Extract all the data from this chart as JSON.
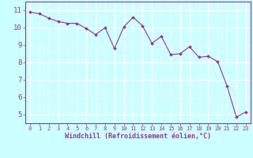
{
  "x": [
    0,
    1,
    2,
    3,
    4,
    5,
    6,
    7,
    8,
    9,
    10,
    11,
    12,
    13,
    14,
    15,
    16,
    17,
    18,
    19,
    20,
    21,
    22,
    23
  ],
  "y": [
    10.9,
    10.8,
    10.55,
    10.35,
    10.25,
    10.25,
    9.95,
    9.6,
    10.0,
    8.8,
    10.05,
    10.6,
    10.1,
    9.1,
    9.5,
    8.45,
    8.5,
    8.9,
    8.3,
    8.35,
    8.05,
    6.65,
    4.85,
    5.15
  ],
  "line_color": "#993399",
  "marker_color": "#993399",
  "bg_color": "#ccffff",
  "grid_color": "#aabbbb",
  "xlabel": "Windchill (Refroidissement éolien,°C)",
  "xlabel_color": "#993399",
  "tick_color": "#993399",
  "ylim": [
    4.5,
    11.5
  ],
  "xlim": [
    -0.5,
    23.5
  ],
  "yticks": [
    5,
    6,
    7,
    8,
    9,
    10,
    11
  ],
  "xticks": [
    0,
    1,
    2,
    3,
    4,
    5,
    6,
    7,
    8,
    9,
    10,
    11,
    12,
    13,
    14,
    15,
    16,
    17,
    18,
    19,
    20,
    21,
    22,
    23
  ]
}
